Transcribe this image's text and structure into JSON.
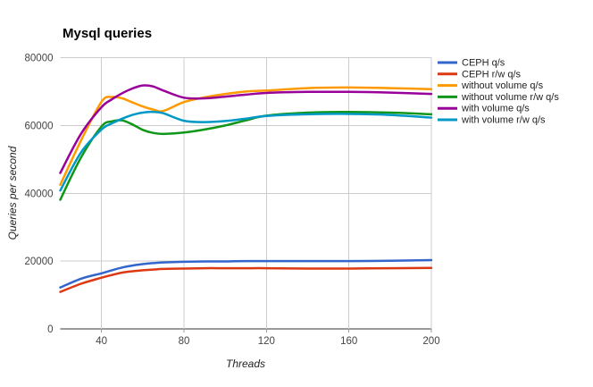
{
  "chart_data": {
    "type": "line",
    "title": "Mysql queries",
    "xlabel": "Threads",
    "ylabel": "Queries per second",
    "xlim": [
      20,
      200
    ],
    "ylim": [
      0,
      80000
    ],
    "x_ticks": [
      40,
      80,
      120,
      160,
      200
    ],
    "y_ticks": [
      0,
      20000,
      40000,
      60000,
      80000
    ],
    "grid": true,
    "legend_position": "right",
    "background": "#ffffff",
    "grid_color": "#cccccc",
    "baseline_color": "#333333",
    "tick_color": "#999999",
    "tick_label_color": "#444444",
    "x": [
      20,
      30,
      40,
      45,
      50,
      55,
      60,
      65,
      70,
      80,
      90,
      100,
      110,
      120,
      140,
      160,
      180,
      200
    ],
    "series": [
      {
        "name": "CEPH q/s",
        "color": "#3366cc",
        "values": [
          12200,
          14800,
          16400,
          17300,
          18100,
          18700,
          19100,
          19400,
          19600,
          19800,
          19900,
          19900,
          20000,
          20000,
          20000,
          20000,
          20100,
          20300
        ]
      },
      {
        "name": "CEPH r/w q/s",
        "color": "#dc3912",
        "values": [
          10900,
          13300,
          15100,
          15900,
          16600,
          17000,
          17300,
          17500,
          17700,
          17800,
          17900,
          17900,
          17900,
          17900,
          17800,
          17800,
          17900,
          18000
        ]
      },
      {
        "name": "without volume q/s",
        "color": "#ff9900",
        "values": [
          42500,
          55500,
          67000,
          68400,
          68000,
          66800,
          65600,
          64700,
          64300,
          66900,
          68300,
          69300,
          70000,
          70300,
          71000,
          71200,
          71000,
          70700
        ]
      },
      {
        "name": "without volume r/w q/s",
        "color": "#109618",
        "values": [
          38100,
          50500,
          59700,
          61200,
          61500,
          60300,
          58700,
          57800,
          57500,
          57900,
          58800,
          60000,
          61500,
          62900,
          63800,
          64000,
          63800,
          63300
        ]
      },
      {
        "name": "with volume q/s",
        "color": "#990099",
        "values": [
          46000,
          57500,
          65400,
          67700,
          69500,
          70900,
          71800,
          71500,
          70300,
          68200,
          68000,
          68500,
          69100,
          69600,
          69900,
          69900,
          69700,
          69300
        ]
      },
      {
        "name": "with volume r/w q/s",
        "color": "#0099c6",
        "values": [
          40800,
          52000,
          58800,
          60600,
          62000,
          63100,
          63800,
          64000,
          63600,
          61400,
          61000,
          61300,
          62000,
          62800,
          63300,
          63400,
          63100,
          62300
        ]
      }
    ]
  }
}
